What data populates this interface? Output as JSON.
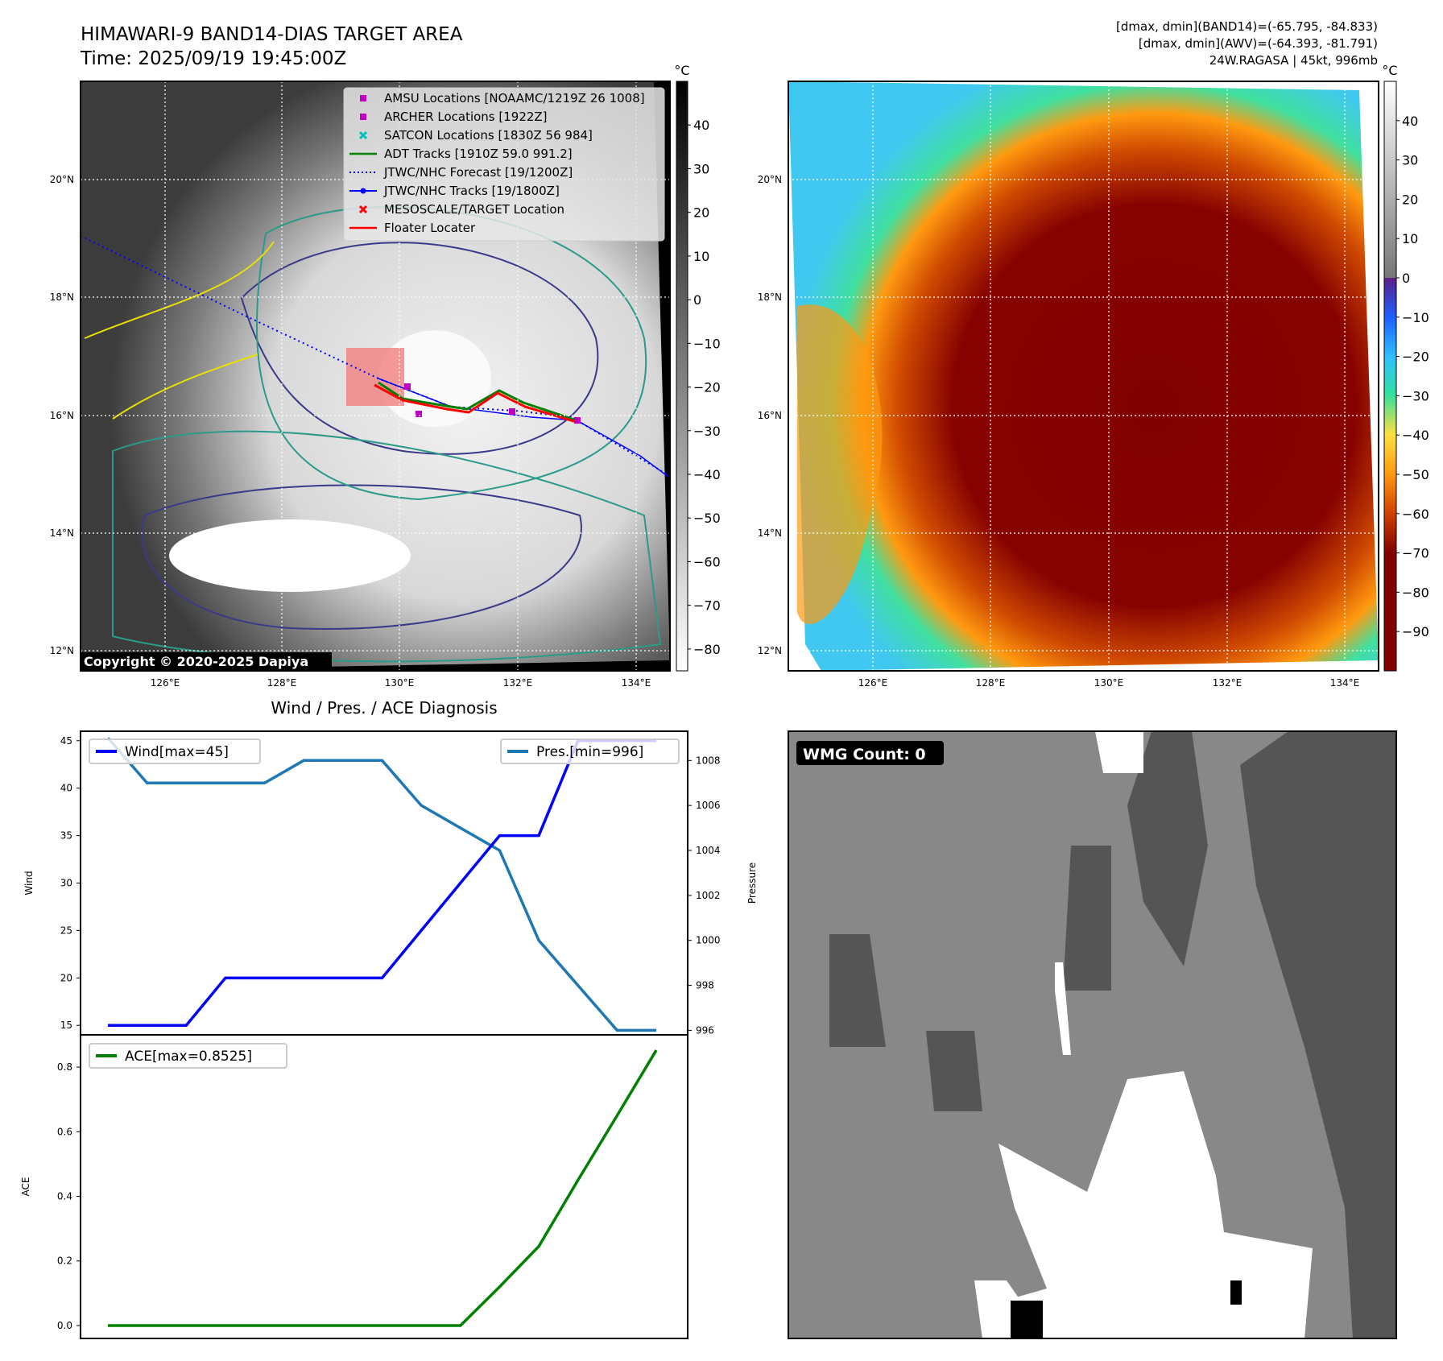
{
  "header": {
    "title": "HIMAWARI-9 BAND14-DIAS TARGET AREA",
    "time": "Time: 2025/09/19 19:45:00Z",
    "info": [
      "[dmax, dmin](BAND14)=(-65.795, -84.833)",
      "[dmax, dmin](AWV)=(-64.393, -81.791)",
      "24W.RAGASA | 45kt, 996mb"
    ]
  },
  "colors": {
    "wind": "#0000ff",
    "pressure": "#1f77b4",
    "ace": "#008000",
    "amsu": "#bf00bf",
    "satcon": "#00bfbf",
    "floater": "#ff0000"
  },
  "maps": {
    "lat_labels": [
      "20°N",
      "18°N",
      "16°N",
      "14°N",
      "12°N"
    ],
    "lon_labels": [
      "126°E",
      "128°E",
      "130°E",
      "132°E",
      "134°E"
    ],
    "unit": "°C",
    "gray_cbar_ticks": [
      "40",
      "30",
      "20",
      "10",
      "0",
      "−10",
      "−20",
      "−30",
      "−40",
      "−50",
      "−60",
      "−70",
      "−80"
    ],
    "color_cbar_ticks": [
      "40",
      "30",
      "20",
      "10",
      "0",
      "−10",
      "−20",
      "−30",
      "−40",
      "−50",
      "−60",
      "−70",
      "−80",
      "−90"
    ],
    "copyright": "Copyright © 2020-2025 Dapiya",
    "legend": [
      {
        "label": "AMSU Locations [NOAAMC/1219Z 26 1008]",
        "icon": "square-marker"
      },
      {
        "label": "ARCHER Locations [1922Z]",
        "icon": "square-marker"
      },
      {
        "label": "SATCON Locations [1830Z 56 984]",
        "icon": "x-marker"
      },
      {
        "label": "ADT Tracks [1910Z 59.0 991.2]",
        "icon": "solid-line"
      },
      {
        "label": "JTWC/NHC Forecast [19/1200Z]",
        "icon": "dotted-line"
      },
      {
        "label": "JTWC/NHC Tracks [19/1800Z]",
        "icon": "line-dot"
      },
      {
        "label": "MESOSCALE/TARGET Location",
        "icon": "x-marker"
      },
      {
        "label": "Floater Locater",
        "icon": "solid-line"
      }
    ]
  },
  "chart_data": [
    {
      "type": "line",
      "title": "Wind / Pres. / ACE Diagnosis",
      "ylabel": "Wind",
      "y2label": "Pressure",
      "ylim": [
        14,
        46
      ],
      "y2lim": [
        995.8,
        1009.3
      ],
      "yticks": [
        "15",
        "20",
        "25",
        "30",
        "35",
        "40",
        "45"
      ],
      "y2ticks": [
        "996",
        "998",
        "1000",
        "1002",
        "1004",
        "1006",
        "1008"
      ],
      "series": [
        {
          "name": "Wind[max=45]",
          "axis": "left",
          "values": [
            15,
            15,
            15,
            20,
            20,
            20,
            20,
            20,
            25,
            30,
            35,
            35,
            45,
            45,
            45
          ]
        },
        {
          "name": "Pres.[min=996]",
          "axis": "right",
          "values": [
            1009,
            1007,
            1007,
            1007,
            1007,
            1008,
            1008,
            1008,
            1006,
            1005,
            1004,
            1000,
            998,
            996,
            996
          ]
        }
      ]
    },
    {
      "type": "line",
      "ylabel": "ACE",
      "ylim": [
        -0.04,
        0.9
      ],
      "yticks": [
        "0.0",
        "0.2",
        "0.4",
        "0.6",
        "0.8"
      ],
      "series": [
        {
          "name": "ACE[max=0.8525]",
          "values": [
            0,
            0,
            0,
            0,
            0,
            0,
            0,
            0,
            0,
            0,
            0.12,
            0.245,
            0.45,
            0.65,
            0.8525
          ]
        }
      ]
    }
  ],
  "wmg": {
    "label": "WMG Count: 0"
  }
}
